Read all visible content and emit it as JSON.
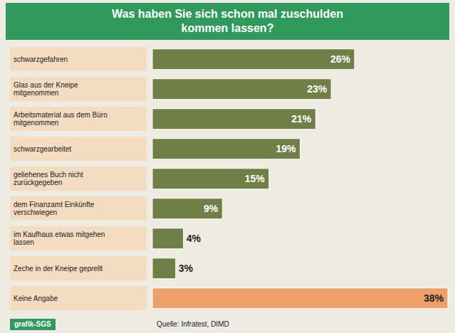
{
  "chart_data": {
    "type": "bar",
    "orientation": "horizontal",
    "title": "Was haben Sie sich schon mal zuschulden kommen lassen?",
    "categories": [
      "schwarzgefahren",
      "Glas aus der Kneipe mitgenommen",
      "Arbeitsmaterial aus dem Büro mitgenommen",
      "schwarzgearbeitet",
      "geliehenes Buch nicht zurückgegeben",
      "dem Finanzamt Einkünfte verschwiegen",
      "im Kaufhaus etwas mitgehen lassen",
      "Zeche in der Kneipe geprellt",
      "Keine Angabe"
    ],
    "values": [
      26,
      23,
      21,
      19,
      15,
      9,
      4,
      3,
      38
    ],
    "value_labels": [
      "26%",
      "23%",
      "21%",
      "19%",
      "15%",
      "9%",
      "4%",
      "3%",
      "38%"
    ],
    "colors": [
      "#6f7f45",
      "#6f7f45",
      "#6f7f45",
      "#6f7f45",
      "#6f7f45",
      "#6f7f45",
      "#6f7f45",
      "#6f7f45",
      "#eda06a"
    ],
    "data_labels": true,
    "tick_labels": "y",
    "credit": "grafik-SGS",
    "source": "Quelle: Infratest, DIMD"
  }
}
